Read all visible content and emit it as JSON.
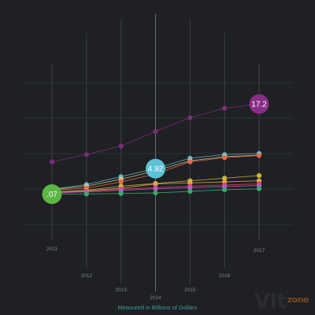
{
  "chart_data": {
    "type": "line",
    "x": [
      "2011",
      "2012",
      "2013",
      "2014",
      "2015",
      "2016",
      "2017"
    ],
    "xlabel": "Measured in Billions of Dollars",
    "ylim": [
      0,
      22
    ],
    "grid": true,
    "series": [
      {
        "color": "#7a2e78",
        "values": [
          6.2,
          7.6,
          9.2,
          12.0,
          14.6,
          16.4,
          17.2
        ],
        "callout": {
          "index": 6,
          "label": "17.2",
          "fill": "#8a2d86"
        }
      },
      {
        "color": "#5bb7c9",
        "values": [
          1.0,
          1.9,
          3.4,
          4.92,
          6.9,
          7.6,
          7.8
        ],
        "callout": {
          "index": 3,
          "label": "4.92",
          "fill": "#5cc2d6"
        }
      },
      {
        "color": "#d8c27f",
        "values": [
          0.9,
          1.6,
          2.9,
          4.5,
          6.4,
          7.2,
          7.5
        ]
      },
      {
        "color": "#e0674f",
        "values": [
          0.8,
          1.2,
          2.4,
          3.9,
          6.2,
          7.0,
          7.4
        ]
      },
      {
        "color": "#c5b83a",
        "values": [
          0.5,
          0.8,
          1.6,
          2.1,
          2.6,
          3.1,
          3.6
        ]
      },
      {
        "color": "#e8a34a",
        "values": [
          0.4,
          0.7,
          1.2,
          2.0,
          2.2,
          2.4,
          2.6
        ]
      },
      {
        "color": "#e23b6a",
        "values": [
          0.3,
          0.6,
          1.0,
          1.3,
          1.6,
          1.8,
          2.0
        ]
      },
      {
        "color": "#b05cc7",
        "values": [
          0.3,
          0.5,
          0.8,
          1.1,
          1.3,
          1.5,
          1.7
        ]
      },
      {
        "color": "#3da86b",
        "values": [
          0.07,
          0.1,
          0.2,
          0.3,
          0.6,
          0.9,
          1.1
        ],
        "callout": {
          "index": 0,
          "label": ".07",
          "fill": "#5db544"
        }
      }
    ]
  },
  "watermark": {
    "main": "VIt",
    "sub": "zone"
  }
}
